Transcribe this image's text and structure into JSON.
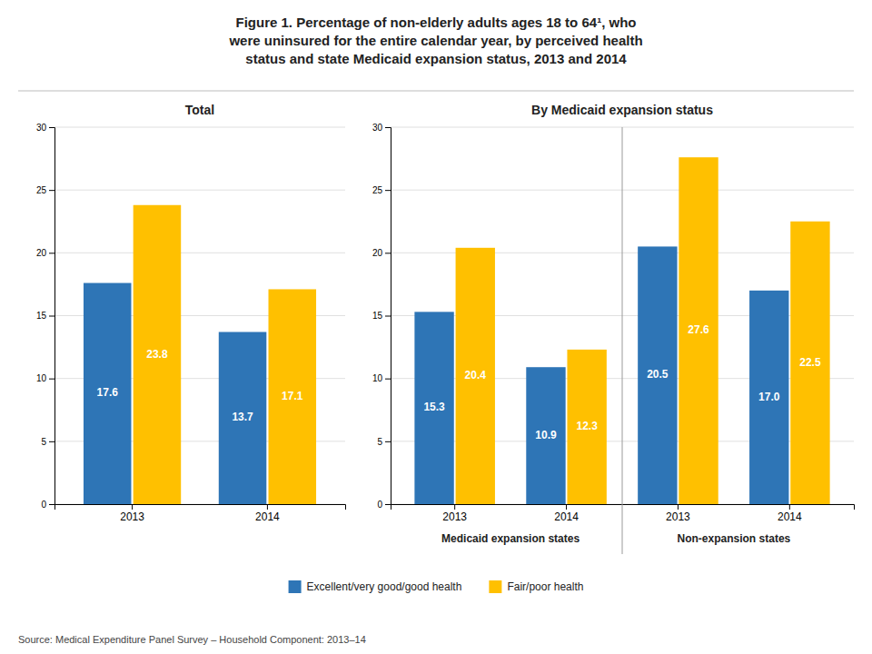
{
  "title": "Figure 1. Percentage of non-elderly adults ages 18 to 64¹, who\nwere uninsured for the entire calendar year, by perceived health\nstatus and state Medicaid expansion status, 2013 and 2014",
  "annotations": [
    "Source: Medical Expenditure Panel Survey – Household Component: 2013–14"
  ],
  "chart_data": [
    {
      "type": "bar",
      "title": "Total",
      "categories": [
        "2013",
        "2014"
      ],
      "series": [
        {
          "name": "Excellent/very good/good health",
          "color": "#2E75B6",
          "values": [
            17.6,
            13.7
          ]
        },
        {
          "name": "Fair/poor health",
          "color": "#FFC000",
          "values": [
            23.8,
            17.1
          ]
        }
      ],
      "ylim": [
        0,
        30
      ],
      "yticks": [
        0,
        5,
        10,
        15,
        20,
        25,
        30
      ],
      "grid": true,
      "data_labels": true,
      "legend": "bottom"
    },
    {
      "type": "bar",
      "title": "By Medicaid expansion status",
      "categories": [
        "2013",
        "2014",
        "2013",
        "2014"
      ],
      "annotations": [
        "Medicaid expansion states",
        "Non-expansion states"
      ],
      "series": [
        {
          "color": "#2E75B6",
          "values": [
            15.3,
            10.9,
            20.5,
            17.0
          ],
          "value_labels": [
            "15.3",
            "10.9",
            "20.5",
            "17.0"
          ]
        },
        {
          "color": "#FFC000",
          "values": [
            20.4,
            12.3,
            27.6,
            22.5
          ]
        }
      ],
      "ylim": [
        0,
        30
      ],
      "yticks": [
        0,
        5,
        10,
        15,
        20,
        25,
        30
      ],
      "grid": true,
      "data_labels": true
    }
  ]
}
